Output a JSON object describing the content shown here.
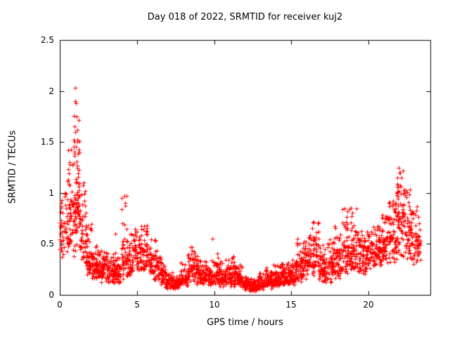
{
  "chart_data": {
    "type": "scatter",
    "title": "Day 018 of 2022, SRMTID for receiver kuj2",
    "xlabel": "GPS time / hours",
    "ylabel": "SRMTID / TECUs",
    "xlim": [
      0,
      24
    ],
    "ylim": [
      0,
      2.5
    ],
    "xticks": [
      0,
      5,
      10,
      15,
      20
    ],
    "xtick_labels": [
      "0",
      "5",
      "10",
      "15",
      "20"
    ],
    "yticks": [
      0,
      0.5,
      1,
      1.5,
      2,
      2.5
    ],
    "ytick_labels": [
      "0",
      "0.5",
      "1",
      "1.5",
      "2",
      "2.5"
    ],
    "grid": false,
    "legend": "none",
    "marker": "plus",
    "marker_color": "#ff0000",
    "axis_color": "#000000",
    "series_name": "SRMTID",
    "seed": 2022018,
    "density_bins": [
      [
        0.0,
        0.5,
        50,
        0.35,
        0.62,
        1.05
      ],
      [
        0.5,
        0.9,
        50,
        0.3,
        0.8,
        1.45
      ],
      [
        0.9,
        1.3,
        80,
        0.35,
        0.95,
        2.03
      ],
      [
        1.3,
        1.7,
        50,
        0.3,
        0.65,
        1.1
      ],
      [
        1.7,
        2.1,
        50,
        0.2,
        0.38,
        0.75
      ],
      [
        2.1,
        2.5,
        55,
        0.15,
        0.3,
        0.5
      ],
      [
        2.5,
        3.0,
        55,
        0.12,
        0.27,
        0.45
      ],
      [
        3.0,
        3.5,
        55,
        0.1,
        0.22,
        0.45
      ],
      [
        3.5,
        4.0,
        55,
        0.08,
        0.2,
        0.6
      ],
      [
        4.0,
        4.4,
        45,
        0.15,
        0.4,
        0.97
      ],
      [
        4.4,
        4.8,
        45,
        0.2,
        0.35,
        0.6
      ],
      [
        4.8,
        5.3,
        55,
        0.25,
        0.42,
        0.68
      ],
      [
        5.3,
        5.8,
        55,
        0.25,
        0.45,
        0.7
      ],
      [
        5.8,
        6.3,
        55,
        0.15,
        0.3,
        0.55
      ],
      [
        6.3,
        6.8,
        55,
        0.1,
        0.22,
        0.4
      ],
      [
        6.8,
        7.3,
        55,
        0.05,
        0.13,
        0.25
      ],
      [
        7.3,
        7.8,
        55,
        0.04,
        0.1,
        0.2
      ],
      [
        7.8,
        8.3,
        55,
        0.06,
        0.15,
        0.35
      ],
      [
        8.3,
        8.8,
        55,
        0.12,
        0.28,
        0.47
      ],
      [
        8.8,
        9.3,
        55,
        0.1,
        0.22,
        0.4
      ],
      [
        9.3,
        9.8,
        55,
        0.08,
        0.18,
        0.35
      ],
      [
        9.8,
        10.3,
        55,
        0.08,
        0.2,
        0.55
      ],
      [
        10.3,
        10.8,
        55,
        0.08,
        0.18,
        0.35
      ],
      [
        10.8,
        11.3,
        55,
        0.08,
        0.2,
        0.38
      ],
      [
        11.3,
        11.8,
        55,
        0.06,
        0.16,
        0.3
      ],
      [
        11.8,
        12.3,
        55,
        0.03,
        0.1,
        0.22
      ],
      [
        12.3,
        12.8,
        60,
        0.02,
        0.08,
        0.18
      ],
      [
        12.8,
        13.3,
        55,
        0.04,
        0.12,
        0.25
      ],
      [
        13.3,
        13.8,
        55,
        0.06,
        0.14,
        0.28
      ],
      [
        13.8,
        14.3,
        55,
        0.07,
        0.16,
        0.3
      ],
      [
        14.3,
        14.8,
        55,
        0.08,
        0.18,
        0.32
      ],
      [
        14.8,
        15.3,
        55,
        0.1,
        0.2,
        0.38
      ],
      [
        15.3,
        15.8,
        55,
        0.12,
        0.28,
        0.55
      ],
      [
        15.8,
        16.3,
        55,
        0.15,
        0.33,
        0.62
      ],
      [
        16.3,
        16.8,
        55,
        0.15,
        0.38,
        0.72
      ],
      [
        16.8,
        17.3,
        55,
        0.1,
        0.25,
        0.5
      ],
      [
        17.3,
        17.8,
        55,
        0.12,
        0.3,
        0.55
      ],
      [
        17.8,
        18.3,
        55,
        0.15,
        0.35,
        0.68
      ],
      [
        18.3,
        18.8,
        55,
        0.2,
        0.42,
        0.85
      ],
      [
        18.8,
        19.3,
        55,
        0.22,
        0.45,
        0.9
      ],
      [
        19.3,
        19.8,
        55,
        0.2,
        0.4,
        0.65
      ],
      [
        19.8,
        20.3,
        55,
        0.25,
        0.45,
        0.62
      ],
      [
        20.3,
        20.8,
        55,
        0.28,
        0.48,
        0.72
      ],
      [
        20.8,
        21.3,
        55,
        0.3,
        0.52,
        0.8
      ],
      [
        21.3,
        21.8,
        60,
        0.32,
        0.58,
        0.95
      ],
      [
        21.8,
        22.3,
        70,
        0.38,
        0.72,
        1.25
      ],
      [
        22.3,
        22.8,
        60,
        0.35,
        0.62,
        1.05
      ],
      [
        22.8,
        23.35,
        55,
        0.3,
        0.5,
        0.9
      ]
    ],
    "outlier_points": [
      [
        1.02,
        2.03
      ],
      [
        0.98,
        1.9
      ],
      [
        1.05,
        1.88
      ],
      [
        1.08,
        1.75
      ],
      [
        0.95,
        1.65
      ],
      [
        1.0,
        1.6
      ],
      [
        1.12,
        1.52
      ],
      [
        0.9,
        1.45
      ],
      [
        0.62,
        1.3
      ],
      [
        4.18,
        0.97
      ],
      [
        4.22,
        0.9
      ],
      [
        3.62,
        0.6
      ],
      [
        9.9,
        0.55
      ],
      [
        18.45,
        0.85
      ],
      [
        21.95,
        1.25
      ],
      [
        22.05,
        1.2
      ],
      [
        22.15,
        1.15
      ]
    ]
  }
}
